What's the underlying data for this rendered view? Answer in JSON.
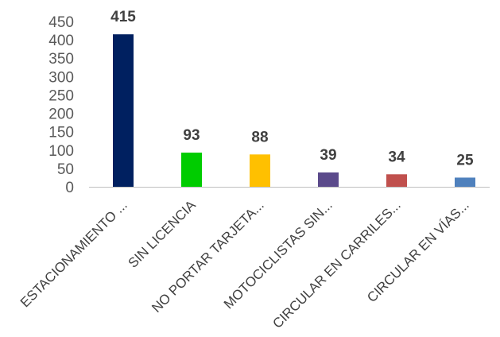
{
  "chart_data": {
    "type": "bar",
    "title": "",
    "xlabel": "",
    "ylabel": "",
    "ylim": [
      0,
      450
    ],
    "yticks": [
      0,
      50,
      100,
      150,
      200,
      250,
      300,
      350,
      400,
      450
    ],
    "grid": false,
    "legend": "none",
    "categories": [
      "ESTACIONAMIENTO ...",
      "SIN LICENCIA",
      "NO PORTAR TARJETA...",
      "MOTOCICLISTAS SIN...",
      "CIRCULAR EN CARRILES...",
      "CIRCULAR EN VÍAS..."
    ],
    "values": [
      415,
      93,
      88,
      39,
      34,
      25
    ],
    "value_labels": [
      "415",
      "93",
      "88",
      "39",
      "34",
      "25"
    ],
    "colors": [
      "#002060",
      "#00cc00",
      "#ffc000",
      "#5b4a8b",
      "#c0504d",
      "#4f81bd"
    ],
    "axis_color": "#bfbfbf"
  }
}
